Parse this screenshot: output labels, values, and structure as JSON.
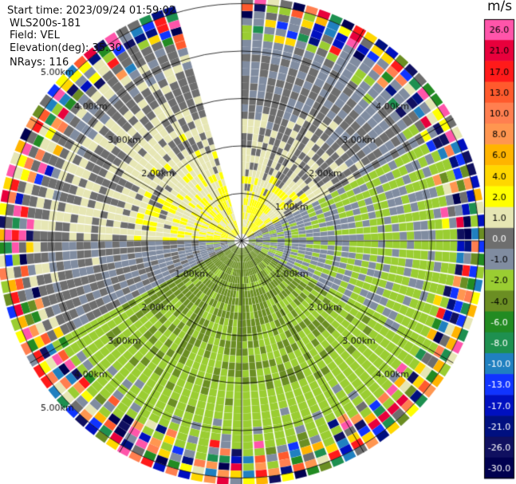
{
  "header": {
    "start_time": "Start time: 2023/09/24 01:59:02",
    "instrument": "WLS200s-181",
    "field": "Field: VEL",
    "elevation": "Elevation(deg): 35.30",
    "nrays": "NRays: 116"
  },
  "chart_data": {
    "type": "heatmap",
    "subtype": "ppi-polar",
    "title": "Start time: 2023/09/24 01:59:02",
    "field": "VEL",
    "units": "m/s",
    "elevation_deg": 35.3,
    "n_rays": 116,
    "range_rings_km": [
      1,
      2,
      3,
      4,
      5
    ],
    "missing_sector_deg": [
      -18,
      0
    ],
    "ring_labels": [
      {
        "text": "1.00km",
        "quadrant": "NE",
        "r_km": 1
      },
      {
        "text": "2.00km",
        "quadrant": "NE",
        "r_km": 2
      },
      {
        "text": "3.00km",
        "quadrant": "NE",
        "r_km": 3
      },
      {
        "text": "4.00km",
        "quadrant": "NE",
        "r_km": 4
      },
      {
        "text": "2.00km",
        "quadrant": "NW",
        "r_km": 2
      },
      {
        "text": "3.00km",
        "quadrant": "NW",
        "r_km": 3
      },
      {
        "text": "4.00km",
        "quadrant": "NW",
        "r_km": 4
      },
      {
        "text": "5.00km",
        "quadrant": "NW",
        "r_km": 5
      },
      {
        "text": "1.00km",
        "quadrant": "SE",
        "r_km": 1
      },
      {
        "text": "2.00km",
        "quadrant": "SE",
        "r_km": 2
      },
      {
        "text": "3.00km",
        "quadrant": "SE",
        "r_km": 3
      },
      {
        "text": "4.00km",
        "quadrant": "SE",
        "r_km": 4
      },
      {
        "text": "1.00km",
        "quadrant": "SW",
        "r_km": 1
      },
      {
        "text": "2.00km",
        "quadrant": "SW",
        "r_km": 2
      },
      {
        "text": "3.00km",
        "quadrant": "SW",
        "r_km": 3
      },
      {
        "text": "4.00km",
        "quadrant": "SW",
        "r_km": 4
      },
      {
        "text": "5.00km",
        "quadrant": "SW",
        "r_km": 5
      }
    ],
    "colorbar": {
      "unit": "m/s",
      "ticks": [
        "26.0",
        "21.0",
        "17.0",
        "13.0",
        "10.0",
        "8.0",
        "6.0",
        "4.0",
        "2.0",
        "1.0",
        "0.0",
        "-1.0",
        "-2.0",
        "-4.0",
        "-6.0",
        "-8.0",
        "-10.0",
        "-13.0",
        "-17.0",
        "-21.0",
        "-26.0",
        "-30.0"
      ],
      "colors": [
        "#ff55aa",
        "#e8003c",
        "#ff1a1a",
        "#ff5a2d",
        "#ff7f50",
        "#ff9650",
        "#ffb400",
        "#ffd700",
        "#ffff00",
        "#e6e6b4",
        "#6e6e6e",
        "#808ca0",
        "#9acd32",
        "#6b8e23",
        "#228b22",
        "#1e9050",
        "#2080c0",
        "#1034ff",
        "#0010c0",
        "#001080",
        "#101060",
        "#000050"
      ]
    },
    "sectors": [
      {
        "name": "north-west",
        "from_deg": -90,
        "to_deg": -18,
        "inner_value": 2.0,
        "outer_value": 0.0
      },
      {
        "name": "north-east",
        "from_deg": 0,
        "to_deg": 60,
        "inner_value": 2.0,
        "outer_value": -1.0
      },
      {
        "name": "east",
        "from_deg": 60,
        "to_deg": 120,
        "inner_value": -1.0,
        "outer_value": -2.0
      },
      {
        "name": "south",
        "from_deg": 120,
        "to_deg": 240,
        "inner_value": -4.0,
        "outer_value": -2.0
      },
      {
        "name": "west",
        "from_deg": 240,
        "to_deg": 270,
        "inner_value": -1.0,
        "outer_value": 0.0
      }
    ],
    "noise_start_km": 4.2
  }
}
